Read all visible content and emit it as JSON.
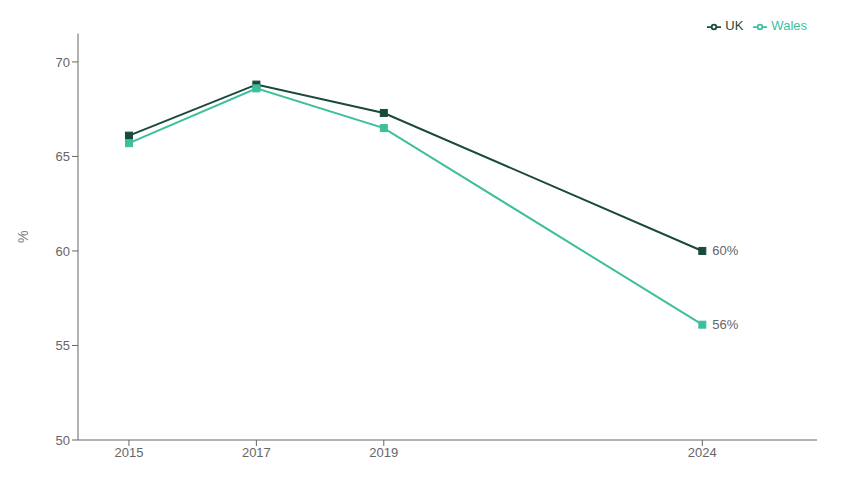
{
  "chart_data": {
    "type": "line",
    "x": [
      2015,
      2017,
      2019,
      2024
    ],
    "series": [
      {
        "name": "UK",
        "color": "#1a4a3a",
        "marker": "square",
        "values": [
          66.1,
          68.8,
          67.3,
          60.0
        ]
      },
      {
        "name": "Wales",
        "color": "#3dbf9e",
        "marker": "square",
        "values": [
          65.7,
          68.6,
          66.5,
          56.1
        ]
      }
    ],
    "ylabel": "%",
    "ylim": [
      50,
      71.5
    ],
    "yticks": [
      50,
      55,
      60,
      65,
      70
    ],
    "xlim": [
      2014.2,
      2025.8
    ],
    "xticks": [
      2015,
      2017,
      2019,
      2024
    ],
    "annotations": [
      {
        "text": "60%",
        "x": 2024,
        "y": 60.0
      },
      {
        "text": "56%",
        "x": 2024,
        "y": 56.1
      }
    ],
    "grid": false,
    "legend": "upper right"
  }
}
